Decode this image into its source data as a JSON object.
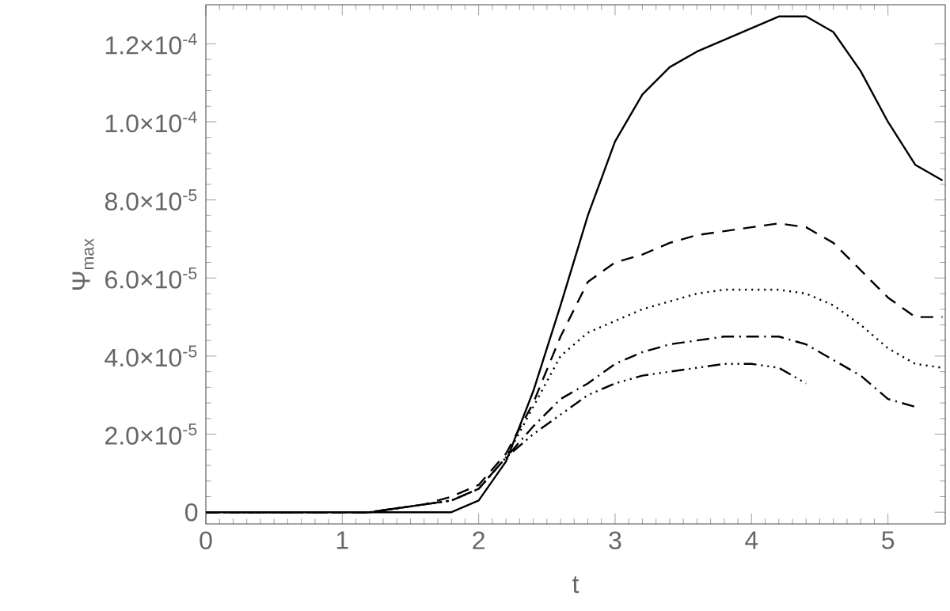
{
  "chart_data": {
    "type": "line",
    "xlabel": "t",
    "ylabel": "Ψ$_{max}$",
    "xlim": [
      0,
      5.42
    ],
    "ylim": [
      -3e-06,
      0.00013
    ],
    "xticks": [
      0,
      1,
      2,
      3,
      4,
      5
    ],
    "yticks": [
      0,
      {
        "value": 2e-05,
        "label": "2.0×10$^{-5}$"
      },
      {
        "value": 4e-05,
        "label": "4.0×10$^{-5}$"
      },
      {
        "value": 6e-05,
        "label": "6.0×10$^{-5}$"
      },
      {
        "value": 8e-05,
        "label": "8.0×10$^{-5}$"
      },
      {
        "value": 0.0001,
        "label": "1.0×10$^{-4}$"
      },
      {
        "value": 0.00012,
        "label": "1.2×10$^{-4}$"
      }
    ],
    "marker": "none",
    "x": [
      0,
      0.2,
      0.4,
      0.6,
      0.8,
      1.0,
      1.2,
      1.4,
      1.6,
      1.8,
      2.0,
      2.2,
      2.4,
      2.6,
      2.8,
      3.0,
      3.2,
      3.4,
      3.6,
      3.8,
      4.0,
      4.2,
      4.4,
      4.6,
      4.8,
      5.0,
      5.2,
      5.4
    ],
    "series": [
      {
        "color": "#000000",
        "line_style": "solid",
        "values": [
          0,
          0,
          0,
          0,
          0,
          0,
          0,
          0,
          0,
          0,
          3e-06,
          1.3e-05,
          3.1e-05,
          5.3e-05,
          7.6e-05,
          9.5e-05,
          0.000107,
          0.000114,
          0.000118,
          0.000121,
          0.000124,
          0.000127,
          0.000127,
          0.000123,
          0.000113,
          0.0001,
          8.9e-05,
          8.5e-05
        ]
      },
      {
        "color": "#000000",
        "line_style": "dashed",
        "values": [
          0,
          0,
          0,
          0,
          0,
          0,
          0,
          1e-06,
          2e-06,
          4e-06,
          7e-06,
          1.5e-05,
          2.8e-05,
          4.5e-05,
          5.9e-05,
          6.4e-05,
          6.6e-05,
          6.9e-05,
          7.1e-05,
          7.2e-05,
          7.3e-05,
          7.4e-05,
          7.3e-05,
          6.9e-05,
          6.2e-05,
          5.5e-05,
          5e-05,
          5e-05
        ]
      },
      {
        "color": "#000000",
        "line_style": "dotted",
        "values": [
          0,
          0,
          0,
          0,
          0,
          0,
          0,
          1e-06,
          2e-06,
          3e-06,
          6e-06,
          1.4e-05,
          2.7e-05,
          4e-05,
          4.6e-05,
          4.9e-05,
          5.2e-05,
          5.4e-05,
          5.6e-05,
          5.7e-05,
          5.7e-05,
          5.7e-05,
          5.6e-05,
          5.3e-05,
          4.8e-05,
          4.2e-05,
          3.8e-05,
          3.7e-05
        ]
      },
      {
        "color": "#000000",
        "line_style": "dashdot",
        "values": [
          0,
          0,
          0,
          0,
          0,
          0,
          0,
          1e-06,
          2e-06,
          3e-06,
          6e-06,
          1.4e-05,
          2.2e-05,
          2.9e-05,
          3.3e-05,
          3.8e-05,
          4.1e-05,
          4.3e-05,
          4.4e-05,
          4.5e-05,
          4.5e-05,
          4.5e-05,
          4.3e-05,
          3.9e-05,
          3.5e-05,
          2.9e-05,
          2.7e-05,
          null
        ]
      },
      {
        "color": "#000000",
        "line_style": "dashdotdot",
        "values": [
          0,
          0,
          0,
          0,
          0,
          0,
          0,
          1e-06,
          2e-06,
          3e-06,
          6e-06,
          1.4e-05,
          2e-05,
          2.5e-05,
          3e-05,
          3.3e-05,
          3.5e-05,
          3.6e-05,
          3.7e-05,
          3.8e-05,
          3.8e-05,
          3.7e-05,
          3.3e-05,
          null,
          null,
          null,
          null,
          null
        ]
      }
    ]
  }
}
